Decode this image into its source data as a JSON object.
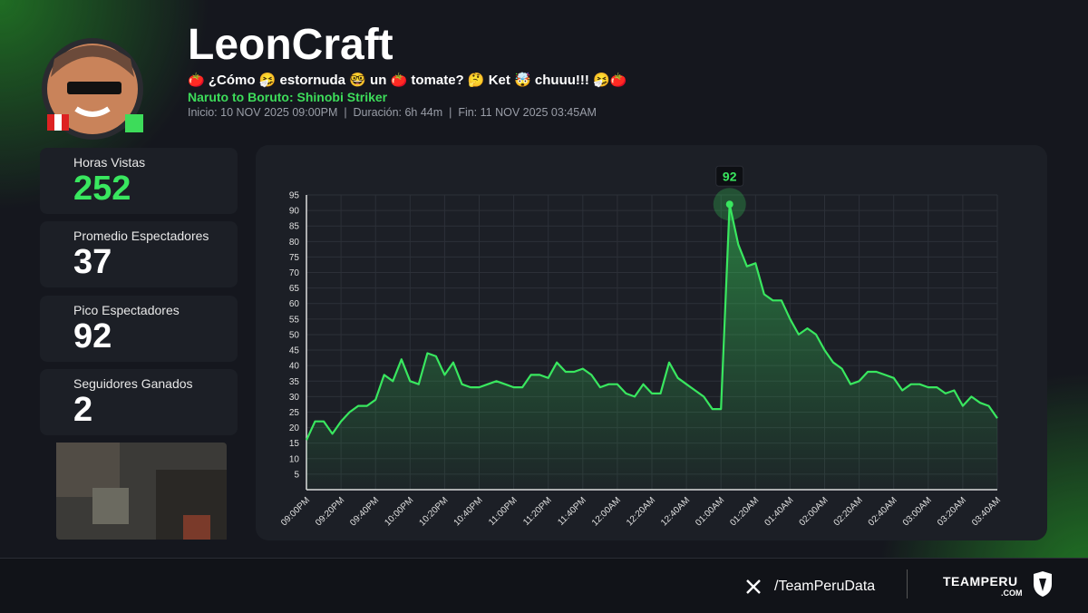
{
  "header": {
    "name": "LeonCraft",
    "stream_title": "🍅 ¿Cómo 🤧 estornuda 🤓 un 🍅 tomate? 🤔 Ket 🤯 chuuu!!! 🤧🍅",
    "game": "Naruto to Boruto: Shinobi Striker",
    "meta": "Inicio: 10 NOV 2025 09:00PM  |  Duración: 6h 44m  |  Fin: 11 NOV 2025 03:45AM"
  },
  "stats": [
    {
      "label": "Horas Vistas",
      "value": 252
    },
    {
      "label": "Promedio Espectadores",
      "value": 37
    },
    {
      "label": "Pico Espectadores",
      "value": 92
    },
    {
      "label": "Seguidores Ganados",
      "value": 2
    }
  ],
  "chart_data": {
    "type": "line",
    "color": "#39e75f",
    "grid": true,
    "categories": [
      "09:00PM",
      null,
      null,
      null,
      "09:20PM",
      null,
      null,
      null,
      "09:40PM",
      null,
      null,
      null,
      "10:00PM",
      null,
      null,
      null,
      "10:20PM",
      null,
      null,
      null,
      "10:40PM",
      null,
      null,
      null,
      "11:00PM",
      null,
      null,
      null,
      "11:20PM",
      null,
      null,
      null,
      "11:40PM",
      null,
      null,
      null,
      "12:00AM",
      null,
      null,
      null,
      "12:20AM",
      null,
      null,
      null,
      "12:40AM",
      null,
      null,
      null,
      "01:00AM",
      null,
      null,
      null,
      "01:20AM",
      null,
      null,
      null,
      "01:40AM",
      null,
      null,
      null,
      "02:00AM",
      null,
      null,
      null,
      "02:20AM",
      null,
      null,
      null,
      "02:40AM",
      null,
      null,
      null,
      "03:00AM",
      null,
      null,
      null,
      "03:20AM",
      null,
      null,
      null,
      "03:40AM"
    ],
    "values": [
      16,
      22,
      22,
      18,
      22,
      25,
      27,
      27,
      29,
      37,
      35,
      42,
      35,
      34,
      44,
      43,
      37,
      41,
      34,
      33,
      33,
      34,
      35,
      34,
      33,
      33,
      37,
      37,
      36,
      41,
      38,
      38,
      39,
      37,
      33,
      34,
      34,
      31,
      30,
      34,
      31,
      31,
      41,
      36,
      34,
      32,
      30,
      26,
      26,
      92,
      79,
      72,
      73,
      63,
      61,
      61,
      55,
      50,
      52,
      50,
      45,
      41,
      39,
      34,
      35,
      38,
      38,
      37,
      36,
      32,
      34,
      34,
      33,
      33,
      31,
      32,
      27,
      30,
      28,
      27,
      23
    ],
    "ylim": [
      0,
      95
    ],
    "yticks": [
      5,
      10,
      15,
      20,
      25,
      30,
      35,
      40,
      45,
      50,
      55,
      60,
      65,
      70,
      75,
      80,
      85,
      90,
      95
    ]
  },
  "footer": {
    "handle": "/TeamPeruData",
    "brand": "TEAMPERU",
    "brand_sub": ".COM"
  }
}
